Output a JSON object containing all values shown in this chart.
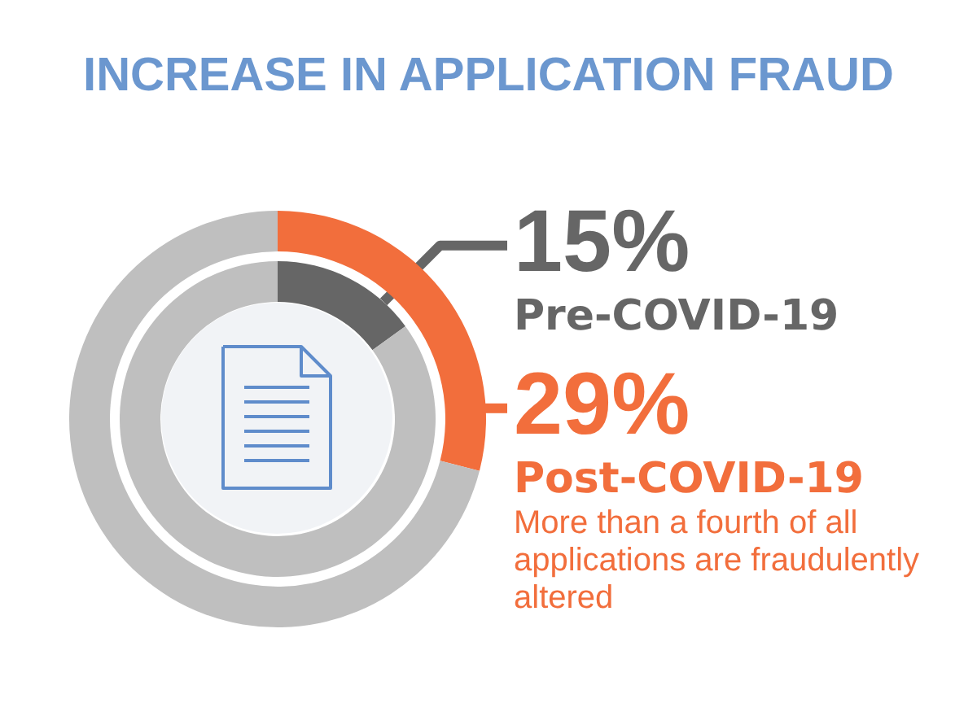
{
  "chart_data": {
    "type": "donut",
    "title": "INCREASE IN APPLICATION FRAUD",
    "categories": [
      null,
      null
    ],
    "series": [
      {
        "name": "Pre-COVID-19",
        "colors": [
          "#666666",
          "#bfbfbf"
        ],
        "values": [
          15,
          85
        ],
        "value_labels": [
          "15%",
          null
        ]
      },
      {
        "name": "Post-COVID-19",
        "colors": [
          "#f26e3c",
          "#bfbfbf"
        ],
        "values": [
          29,
          71
        ],
        "value_labels": [
          "29%",
          null
        ]
      }
    ],
    "annotations": [
      "More than a fourth of all applications are fraudulently altered"
    ]
  }
}
